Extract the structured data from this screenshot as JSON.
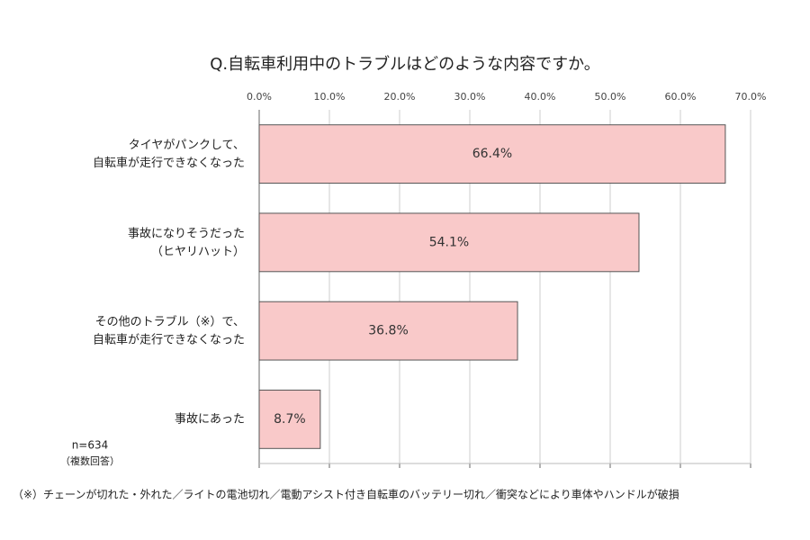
{
  "chart_data": {
    "type": "bar",
    "orientation": "horizontal",
    "title": "Q.自転車利用中のトラブルはどのような内容ですか。",
    "categories": [
      "タイヤがパンクして、\n自転車が走行できなくなった",
      "事故になりそうだった\n（ヒヤリハット）",
      "その他のトラブル（※）で、\n自転車が走行できなくなった",
      "事故にあった"
    ],
    "values": [
      66.4,
      54.1,
      36.8,
      8.7
    ],
    "value_labels": [
      "66.4%",
      "54.1%",
      "36.8%",
      "8.7%"
    ],
    "color": "#f9c9c9",
    "xlim": [
      0,
      70
    ],
    "xticks": [
      {
        "value": 0,
        "label": "0.0%"
      },
      {
        "value": 10,
        "label": "10.0%"
      },
      {
        "value": 20,
        "label": "20.0%"
      },
      {
        "value": 30,
        "label": "30.0%"
      },
      {
        "value": 40,
        "label": "40.0%"
      },
      {
        "value": 50,
        "label": "50.0%"
      },
      {
        "value": 60,
        "label": "60.0%"
      },
      {
        "value": 70,
        "label": "70.0%"
      }
    ],
    "grid": true,
    "sample_note": "n=634",
    "sample_subnote": "（複数回答）",
    "footnote": "（※）チェーンが切れた・外れた／ライトの電池切れ／電動アシスト付き自転車のバッテリー切れ／衝突などにより車体やハンドルが破損"
  }
}
